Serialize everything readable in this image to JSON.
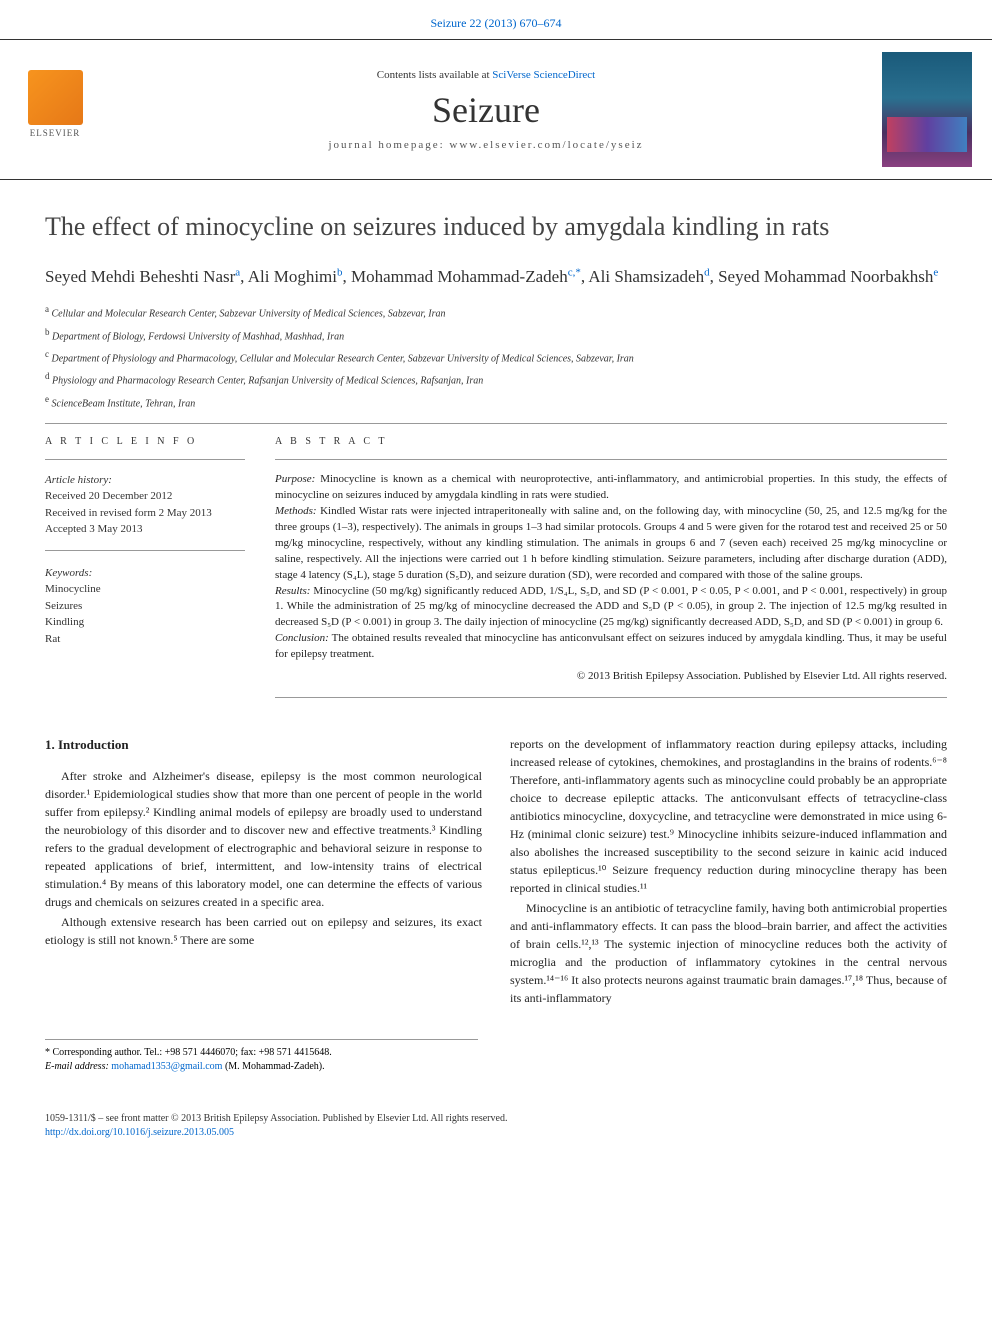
{
  "header": {
    "citation": "Seizure 22 (2013) 670–674",
    "contents_prefix": "Contents lists available at ",
    "contents_link": "SciVerse ScienceDirect",
    "journal_name": "Seizure",
    "homepage_prefix": "journal homepage: ",
    "homepage_url": "www.elsevier.com/locate/yseiz",
    "publisher": "ELSEVIER"
  },
  "title": "The effect of minocycline on seizures induced by amygdala kindling in rats",
  "authors_html": "Seyed Mehdi Beheshti Nasr<sup>a</sup>, Ali Moghimi<sup>b</sup>, Mohammad Mohammad-Zadeh<sup>c,*</sup>, Ali Shamsizadeh<sup>d</sup>, Seyed Mohammad Noorbakhsh<sup>e</sup>",
  "affiliations": [
    {
      "sup": "a",
      "text": "Cellular and Molecular Research Center, Sabzevar University of Medical Sciences, Sabzevar, Iran"
    },
    {
      "sup": "b",
      "text": "Department of Biology, Ferdowsi University of Mashhad, Mashhad, Iran"
    },
    {
      "sup": "c",
      "text": "Department of Physiology and Pharmacology, Cellular and Molecular Research Center, Sabzevar University of Medical Sciences, Sabzevar, Iran"
    },
    {
      "sup": "d",
      "text": "Physiology and Pharmacology Research Center, Rafsanjan University of Medical Sciences, Rafsanjan, Iran"
    },
    {
      "sup": "e",
      "text": "ScienceBeam Institute, Tehran, Iran"
    }
  ],
  "article_info": {
    "heading": "A R T I C L E  I N F O",
    "history_label": "Article history:",
    "history": [
      "Received 20 December 2012",
      "Received in revised form 2 May 2013",
      "Accepted 3 May 2013"
    ],
    "keywords_label": "Keywords:",
    "keywords": [
      "Minocycline",
      "Seizures",
      "Kindling",
      "Rat"
    ]
  },
  "abstract": {
    "heading": "A B S T R A C T",
    "purpose_label": "Purpose:",
    "purpose": " Minocycline is known as a chemical with neuroprotective, anti-inflammatory, and antimicrobial properties. In this study, the effects of minocycline on seizures induced by amygdala kindling in rats were studied.",
    "methods_label": "Methods:",
    "methods": " Kindled Wistar rats were injected intraperitoneally with saline and, on the following day, with minocycline (50, 25, and 12.5 mg/kg for the three groups (1–3), respectively). The animals in groups 1–3 had similar protocols. Groups 4 and 5 were given for the rotarod test and received 25 or 50 mg/kg minocycline, respectively, without any kindling stimulation. The animals in groups 6 and 7 (seven each) received 25 mg/kg minocycline or saline, respectively. All the injections were carried out 1 h before kindling stimulation. Seizure parameters, including after discharge duration (ADD), stage 4 latency (S₄L), stage 5 duration (S₅D), and seizure duration (SD), were recorded and compared with those of the saline groups.",
    "results_label": "Results:",
    "results": " Minocycline (50 mg/kg) significantly reduced ADD, 1/S₄L, S₅D, and SD (P < 0.001, P < 0.05, P < 0.001, and P < 0.001, respectively) in group 1. While the administration of 25 mg/kg of minocycline decreased the ADD and S₅D (P < 0.05), in group 2. The injection of 12.5 mg/kg resulted in decreased S₅D (P < 0.001) in group 3. The daily injection of minocycline (25 mg/kg) significantly decreased ADD, S₅D, and SD (P < 0.001) in group 6.",
    "conclusion_label": "Conclusion:",
    "conclusion": " The obtained results revealed that minocycline has anticonvulsant effect on seizures induced by amygdala kindling. Thus, it may be useful for epilepsy treatment.",
    "copyright": "© 2013 British Epilepsy Association. Published by Elsevier Ltd. All rights reserved."
  },
  "section1": {
    "heading": "1. Introduction",
    "p1": "After stroke and Alzheimer's disease, epilepsy is the most common neurological disorder.¹ Epidemiological studies show that more than one percent of people in the world suffer from epilepsy.² Kindling animal models of epilepsy are broadly used to understand the neurobiology of this disorder and to discover new and effective treatments.³ Kindling refers to the gradual development of electrographic and behavioral seizure in response to repeated applications of brief, intermittent, and low-intensity trains of electrical stimulation.⁴ By means of this laboratory model, one can determine the effects of various drugs and chemicals on seizures created in a specific area.",
    "p2": "Although extensive research has been carried out on epilepsy and seizures, its exact etiology is still not known.⁵ There are some",
    "p3": "reports on the development of inflammatory reaction during epilepsy attacks, including increased release of cytokines, chemokines, and prostaglandins in the brains of rodents.⁶⁻⁸ Therefore, anti-inflammatory agents such as minocycline could probably be an appropriate choice to decrease epileptic attacks. The anticonvulsant effects of tetracycline-class antibiotics minocycline, doxycycline, and tetracycline were demonstrated in mice using 6-Hz (minimal clonic seizure) test.⁹ Minocycline inhibits seizure-induced inflammation and also abolishes the increased susceptibility to the second seizure in kainic acid induced status epilepticus.¹⁰ Seizure frequency reduction during minocycline therapy has been reported in clinical studies.¹¹",
    "p4": "Minocycline is an antibiotic of tetracycline family, having both antimicrobial properties and anti-inflammatory effects. It can pass the blood–brain barrier, and affect the activities of brain cells.¹²,¹³ The systemic injection of minocycline reduces both the activity of microglia and the production of inflammatory cytokines in the central nervous system.¹⁴⁻¹⁶ It also protects neurons against traumatic brain damages.¹⁷,¹⁸ Thus, because of its anti-inflammatory"
  },
  "footnote": {
    "corr": "* Corresponding author. Tel.: +98 571 4446070; fax: +98 571 4415648.",
    "email_label": "E-mail address:",
    "email": "mohamad1353@gmail.com",
    "email_suffix": " (M. Mohammad-Zadeh)."
  },
  "footer": {
    "line1": "1059-1311/$ – see front matter © 2013 British Epilepsy Association. Published by Elsevier Ltd. All rights reserved.",
    "doi": "http://dx.doi.org/10.1016/j.seizure.2013.05.005"
  },
  "colors": {
    "link": "#0066cc",
    "text": "#222222",
    "rule": "#999999",
    "elsevier_orange": "#f7941e"
  }
}
